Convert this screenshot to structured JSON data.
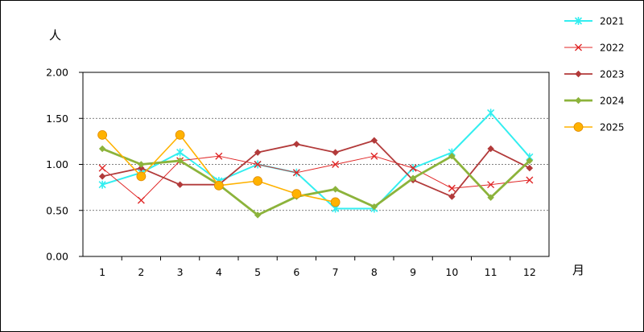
{
  "chart_data": {
    "type": "line",
    "ylabel": "人",
    "xlabel": "月",
    "categories": [
      "1",
      "2",
      "3",
      "4",
      "5",
      "6",
      "7",
      "8",
      "9",
      "10",
      "11",
      "12"
    ],
    "ylim": [
      0,
      2
    ],
    "yticks": [
      "0.00",
      "0.50",
      "1.00",
      "1.50",
      "2.00"
    ],
    "grid": "horizontal dashed at 0.50, 1.00, 1.50",
    "legend_position": "right",
    "series": [
      {
        "name": "2021",
        "color": "#33eef0",
        "marker": "star",
        "values": [
          0.78,
          0.91,
          1.13,
          0.82,
          1.0,
          0.91,
          0.52,
          0.52,
          0.96,
          1.13,
          1.56,
          1.08
        ]
      },
      {
        "name": "2022",
        "color": "#e02626",
        "marker": "x",
        "values": [
          0.96,
          0.61,
          1.04,
          1.09,
          1.0,
          0.91,
          1.0,
          1.09,
          0.96,
          0.74,
          0.78,
          0.83
        ]
      },
      {
        "name": "2023",
        "color": "#b23a3a",
        "marker": "diamond",
        "values": [
          0.87,
          0.96,
          0.78,
          0.78,
          1.13,
          1.22,
          1.13,
          1.26,
          0.83,
          0.65,
          1.17,
          0.96
        ]
      },
      {
        "name": "2024",
        "color": "#8cb33b",
        "marker": "diamond",
        "values": [
          1.17,
          1.0,
          1.04,
          0.78,
          0.45,
          0.65,
          0.73,
          0.54,
          0.85,
          1.09,
          0.64,
          1.04
        ]
      },
      {
        "name": "2025",
        "color": "#ffb200",
        "marker": "circle",
        "values": [
          1.32,
          0.87,
          1.32,
          0.77,
          0.82,
          0.68,
          0.59,
          null,
          null,
          null,
          null,
          null
        ]
      }
    ]
  }
}
